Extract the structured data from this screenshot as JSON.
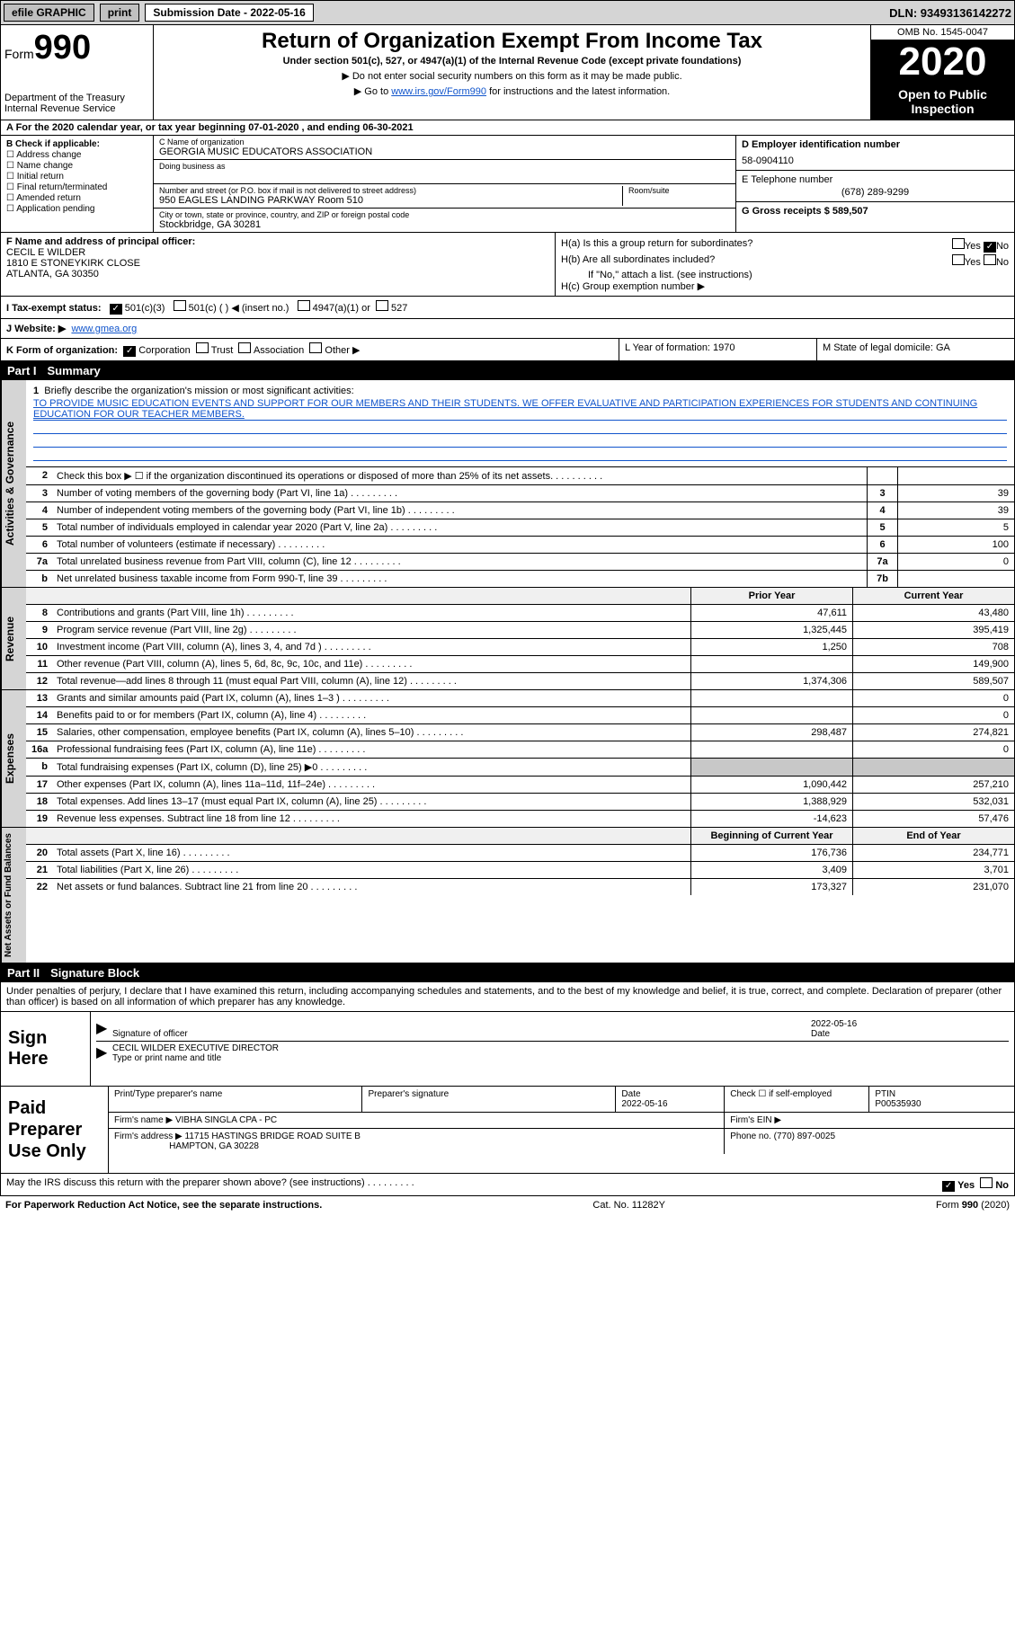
{
  "top_bar": {
    "efile": "efile GRAPHIC",
    "print": "print",
    "sub_label": "Submission Date - 2022-05-16",
    "dln": "DLN: 93493136142272"
  },
  "header": {
    "form_prefix": "Form",
    "form_num": "990",
    "dept": "Department of the Treasury\nInternal Revenue Service",
    "title": "Return of Organization Exempt From Income Tax",
    "sub": "Under section 501(c), 527, or 4947(a)(1) of the Internal Revenue Code (except private foundations)",
    "note1": "▶ Do not enter social security numbers on this form as it may be made public.",
    "note2_pre": "▶ Go to ",
    "note2_link": "www.irs.gov/Form990",
    "note2_post": " for instructions and the latest information.",
    "omb": "OMB No. 1545-0047",
    "year": "2020",
    "otp": "Open to Public Inspection"
  },
  "period": "A For the 2020 calendar year, or tax year beginning 07-01-2020    , and ending 06-30-2021",
  "box_b": {
    "label": "B Check if applicable:",
    "items": [
      "Address change",
      "Name change",
      "Initial return",
      "Final return/terminated",
      "Amended return",
      "Application pending"
    ]
  },
  "box_c": {
    "name_label": "C Name of organization",
    "name": "GEORGIA MUSIC EDUCATORS ASSOCIATION",
    "dba_label": "Doing business as",
    "addr_label": "Number and street (or P.O. box if mail is not delivered to street address)",
    "room_label": "Room/suite",
    "addr": "950 EAGLES LANDING PARKWAY Room 510",
    "city_label": "City or town, state or province, country, and ZIP or foreign postal code",
    "city": "Stockbridge, GA  30281"
  },
  "box_d": {
    "label": "D Employer identification number",
    "val": "58-0904110"
  },
  "box_e": {
    "label": "E Telephone number",
    "val": "(678) 289-9299"
  },
  "box_g": {
    "label": "G Gross receipts $ 589,507"
  },
  "box_f": {
    "label": "F Name and address of principal officer:",
    "name": "CECIL E WILDER",
    "addr1": "1810 E STONEYKIRK CLOSE",
    "addr2": "ATLANTA, GA  30350"
  },
  "box_h": {
    "a": "H(a) Is this a group return for subordinates?",
    "a_yes": "Yes",
    "a_no": "No",
    "b": "H(b) Are all subordinates included?",
    "b_yes": "Yes",
    "b_no": "No",
    "b_note": "If \"No,\" attach a list. (see instructions)",
    "c": "H(c) Group exemption number ▶"
  },
  "box_i": {
    "label": "I    Tax-exempt status:",
    "opts": [
      "501(c)(3)",
      "501(c) (  ) ◀ (insert no.)",
      "4947(a)(1) or",
      "527"
    ]
  },
  "box_j": {
    "label": "J   Website: ▶",
    "val": "www.gmea.org"
  },
  "box_k": {
    "label": "K Form of organization:",
    "opts": [
      "Corporation",
      "Trust",
      "Association",
      "Other ▶"
    ]
  },
  "box_l": "L Year of formation: 1970",
  "box_m": "M State of legal domicile: GA",
  "part1": {
    "num": "Part I",
    "title": "Summary"
  },
  "mission": {
    "num": "1",
    "label": "Briefly describe the organization's mission or most significant activities:",
    "text": "TO PROVIDE MUSIC EDUCATION EVENTS AND SUPPORT FOR OUR MEMBERS AND THEIR STUDENTS. WE OFFER EVALUATIVE AND PARTICIPATION EXPERIENCES FOR STUDENTS AND CONTINUING EDUCATION FOR OUR TEACHER MEMBERS."
  },
  "gov_lines": [
    {
      "n": "2",
      "t": "Check this box ▶ ☐  if the organization discontinued its operations or disposed of more than 25% of its net assets.",
      "box": "",
      "v": ""
    },
    {
      "n": "3",
      "t": "Number of voting members of the governing body (Part VI, line 1a)",
      "box": "3",
      "v": "39"
    },
    {
      "n": "4",
      "t": "Number of independent voting members of the governing body (Part VI, line 1b)",
      "box": "4",
      "v": "39"
    },
    {
      "n": "5",
      "t": "Total number of individuals employed in calendar year 2020 (Part V, line 2a)",
      "box": "5",
      "v": "5"
    },
    {
      "n": "6",
      "t": "Total number of volunteers (estimate if necessary)",
      "box": "6",
      "v": "100"
    },
    {
      "n": "7a",
      "t": "Total unrelated business revenue from Part VIII, column (C), line 12",
      "box": "7a",
      "v": "0"
    },
    {
      "n": "b",
      "t": "Net unrelated business taxable income from Form 990-T, line 39",
      "box": "7b",
      "v": ""
    }
  ],
  "rev_hdr": {
    "prior": "Prior Year",
    "curr": "Current Year"
  },
  "rev_lines": [
    {
      "n": "8",
      "t": "Contributions and grants (Part VIII, line 1h)",
      "p": "47,611",
      "c": "43,480"
    },
    {
      "n": "9",
      "t": "Program service revenue (Part VIII, line 2g)",
      "p": "1,325,445",
      "c": "395,419"
    },
    {
      "n": "10",
      "t": "Investment income (Part VIII, column (A), lines 3, 4, and 7d )",
      "p": "1,250",
      "c": "708"
    },
    {
      "n": "11",
      "t": "Other revenue (Part VIII, column (A), lines 5, 6d, 8c, 9c, 10c, and 11e)",
      "p": "",
      "c": "149,900"
    },
    {
      "n": "12",
      "t": "Total revenue—add lines 8 through 11 (must equal Part VIII, column (A), line 12)",
      "p": "1,374,306",
      "c": "589,507"
    }
  ],
  "exp_lines": [
    {
      "n": "13",
      "t": "Grants and similar amounts paid (Part IX, column (A), lines 1–3 )",
      "p": "",
      "c": "0"
    },
    {
      "n": "14",
      "t": "Benefits paid to or for members (Part IX, column (A), line 4)",
      "p": "",
      "c": "0"
    },
    {
      "n": "15",
      "t": "Salaries, other compensation, employee benefits (Part IX, column (A), lines 5–10)",
      "p": "298,487",
      "c": "274,821"
    },
    {
      "n": "16a",
      "t": "Professional fundraising fees (Part IX, column (A), line 11e)",
      "p": "",
      "c": "0"
    },
    {
      "n": "b",
      "t": "Total fundraising expenses (Part IX, column (D), line 25) ▶0",
      "p": "shade",
      "c": "shade"
    },
    {
      "n": "17",
      "t": "Other expenses (Part IX, column (A), lines 11a–11d, 11f–24e)",
      "p": "1,090,442",
      "c": "257,210"
    },
    {
      "n": "18",
      "t": "Total expenses. Add lines 13–17 (must equal Part IX, column (A), line 25)",
      "p": "1,388,929",
      "c": "532,031"
    },
    {
      "n": "19",
      "t": "Revenue less expenses. Subtract line 18 from line 12",
      "p": "-14,623",
      "c": "57,476"
    }
  ],
  "na_hdr": {
    "beg": "Beginning of Current Year",
    "end": "End of Year"
  },
  "na_lines": [
    {
      "n": "20",
      "t": "Total assets (Part X, line 16)",
      "p": "176,736",
      "c": "234,771"
    },
    {
      "n": "21",
      "t": "Total liabilities (Part X, line 26)",
      "p": "3,409",
      "c": "3,701"
    },
    {
      "n": "22",
      "t": "Net assets or fund balances. Subtract line 21 from line 20",
      "p": "173,327",
      "c": "231,070"
    }
  ],
  "vtabs": {
    "gov": "Activities & Governance",
    "rev": "Revenue",
    "exp": "Expenses",
    "na": "Net Assets or Fund Balances"
  },
  "part2": {
    "num": "Part II",
    "title": "Signature Block"
  },
  "sig_intro": "Under penalties of perjury, I declare that I have examined this return, including accompanying schedules and statements, and to the best of my knowledge and belief, it is true, correct, and complete. Declaration of preparer (other than officer) is based on all information of which preparer has any knowledge.",
  "sign": {
    "label": "Sign Here",
    "sig_of": "Signature of officer",
    "date": "Date",
    "date_val": "2022-05-16",
    "name": "CECIL WILDER  EXECUTIVE DIRECTOR",
    "type": "Type or print name and title"
  },
  "prep": {
    "label": "Paid Preparer Use Only",
    "h1": "Print/Type preparer's name",
    "h2": "Preparer's signature",
    "h3": "Date",
    "h3v": "2022-05-16",
    "h4": "Check ☐ if self-employed",
    "h5": "PTIN",
    "h5v": "P00535930",
    "firm_label": "Firm's name    ▶",
    "firm": "VIBHA SINGLA CPA - PC",
    "ein_label": "Firm's EIN ▶",
    "addr_label": "Firm's address ▶",
    "addr1": "11715 HASTINGS BRIDGE ROAD SUITE B",
    "addr2": "HAMPTON, GA  30228",
    "phone_label": "Phone no.",
    "phone": "(770) 897-0025"
  },
  "irs_q": "May the IRS discuss this return with the preparer shown above? (see instructions)",
  "irs_yes": "Yes",
  "irs_no": "No",
  "footer": {
    "left": "For Paperwork Reduction Act Notice, see the separate instructions.",
    "mid": "Cat. No. 11282Y",
    "right": "Form 990 (2020)"
  }
}
